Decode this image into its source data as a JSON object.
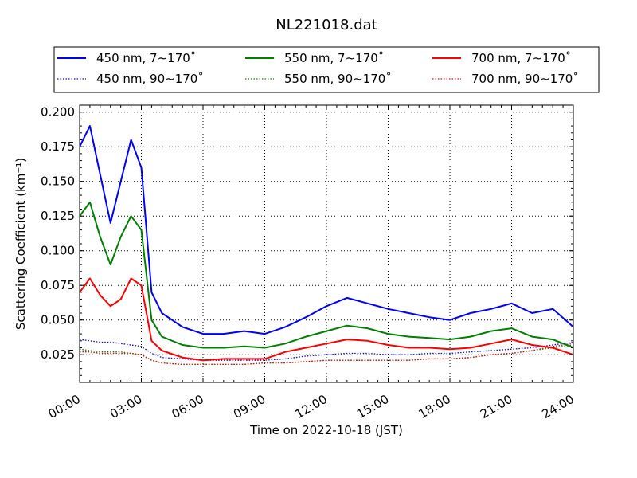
{
  "chart_data": {
    "type": "line",
    "title": "NL221018.dat",
    "xlabel": "Time on 2022-10-18 (JST)",
    "ylabel": "Scattering Coefficient (km⁻¹)",
    "xlim": [
      "00:00",
      "24:00"
    ],
    "ylim": [
      0.005,
      0.205
    ],
    "x_tick_labels": [
      "00:00",
      "03:00",
      "06:00",
      "09:00",
      "12:00",
      "15:00",
      "18:00",
      "21:00",
      "24:00"
    ],
    "y_tick_labels": [
      "0.025",
      "0.050",
      "0.075",
      "0.100",
      "0.125",
      "0.150",
      "0.175",
      "0.200"
    ],
    "grid": true,
    "legend_position": "top",
    "x": [
      "00:00",
      "00:30",
      "01:00",
      "01:30",
      "02:00",
      "02:30",
      "03:00",
      "03:30",
      "04:00",
      "05:00",
      "06:00",
      "07:00",
      "08:00",
      "09:00",
      "10:00",
      "11:00",
      "12:00",
      "13:00",
      "14:00",
      "15:00",
      "16:00",
      "17:00",
      "18:00",
      "19:00",
      "20:00",
      "21:00",
      "22:00",
      "23:00",
      "24:00"
    ],
    "series": [
      {
        "name": "450 nm, 7∼170˚",
        "color": "#0000ff",
        "dash": "solid",
        "values": [
          0.175,
          0.19,
          0.155,
          0.12,
          0.15,
          0.18,
          0.16,
          0.07,
          0.055,
          0.045,
          0.04,
          0.04,
          0.042,
          0.04,
          0.045,
          0.052,
          0.06,
          0.066,
          0.062,
          0.058,
          0.055,
          0.052,
          0.05,
          0.055,
          0.058,
          0.062,
          0.055,
          0.058,
          0.045
        ]
      },
      {
        "name": "550 nm, 7∼170˚",
        "color": "#008000",
        "dash": "solid",
        "values": [
          0.125,
          0.135,
          0.11,
          0.09,
          0.11,
          0.125,
          0.115,
          0.05,
          0.038,
          0.032,
          0.03,
          0.03,
          0.031,
          0.03,
          0.033,
          0.038,
          0.042,
          0.046,
          0.044,
          0.04,
          0.038,
          0.037,
          0.036,
          0.038,
          0.042,
          0.044,
          0.038,
          0.036,
          0.03
        ]
      },
      {
        "name": "700 nm, 7∼170˚",
        "color": "#ff0000",
        "dash": "solid",
        "values": [
          0.07,
          0.08,
          0.068,
          0.06,
          0.065,
          0.08,
          0.075,
          0.035,
          0.028,
          0.023,
          0.021,
          0.022,
          0.022,
          0.022,
          0.027,
          0.03,
          0.033,
          0.036,
          0.035,
          0.032,
          0.03,
          0.03,
          0.029,
          0.03,
          0.033,
          0.036,
          0.032,
          0.03,
          0.025
        ]
      },
      {
        "name": "450 nm, 90∼170˚",
        "color": "#0000ff",
        "dash": "dotted",
        "values": [
          0.036,
          0.035,
          0.034,
          0.034,
          0.033,
          0.032,
          0.031,
          0.026,
          0.023,
          0.022,
          0.021,
          0.021,
          0.021,
          0.021,
          0.022,
          0.024,
          0.025,
          0.026,
          0.026,
          0.025,
          0.025,
          0.026,
          0.026,
          0.027,
          0.028,
          0.029,
          0.03,
          0.032,
          0.034
        ]
      },
      {
        "name": "550 nm, 90∼170˚",
        "color": "#008000",
        "dash": "dotted",
        "values": [
          0.029,
          0.028,
          0.027,
          0.027,
          0.027,
          0.026,
          0.025,
          0.021,
          0.019,
          0.018,
          0.018,
          0.018,
          0.018,
          0.019,
          0.019,
          0.02,
          0.021,
          0.021,
          0.021,
          0.021,
          0.021,
          0.022,
          0.022,
          0.023,
          0.025,
          0.026,
          0.028,
          0.03,
          0.032
        ]
      },
      {
        "name": "700 nm, 90∼170˚",
        "color": "#ff0000",
        "dash": "dotted",
        "values": [
          0.027,
          0.027,
          0.026,
          0.026,
          0.026,
          0.026,
          0.025,
          0.021,
          0.019,
          0.018,
          0.018,
          0.018,
          0.018,
          0.019,
          0.019,
          0.02,
          0.021,
          0.021,
          0.021,
          0.021,
          0.021,
          0.022,
          0.022,
          0.023,
          0.025,
          0.026,
          0.028,
          0.031,
          0.033
        ]
      }
    ]
  }
}
